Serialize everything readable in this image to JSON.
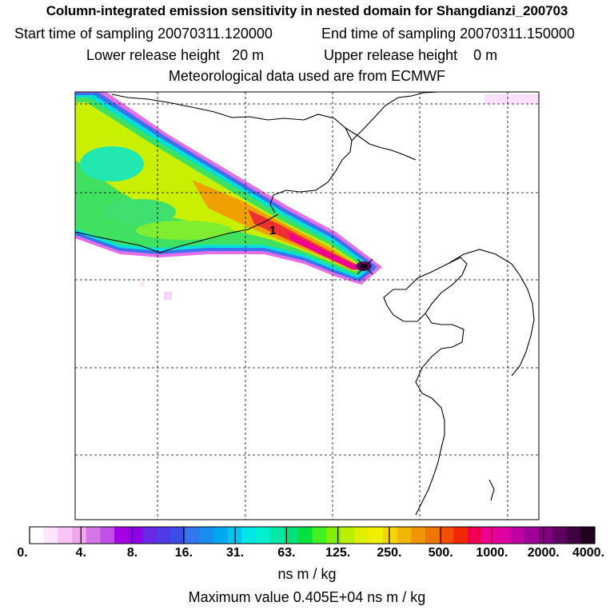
{
  "header": {
    "title": "Column-integrated emission sensitivity in nested domain for Shangdianzi_200703",
    "start_label": "Start time of sampling 20070311.120000",
    "end_label": "End time of sampling 20070311.150000",
    "lower_label": "Lower release height   20 m",
    "upper_label": "Upper release height    0 m",
    "met_label": "Meteorological data used are from ECMWF"
  },
  "map": {
    "release_marker": "1",
    "site_marker_icon": "x-cross-icon"
  },
  "colorbar": {
    "tick_labels": [
      "0.",
      "4.",
      "8.",
      "16.",
      "31.",
      "63.",
      "125.",
      "250.",
      "500.",
      "1000.",
      "2000.",
      "4000."
    ],
    "colors": [
      "#ffffff",
      "#fde6fd",
      "#f7c6f7",
      "#f0a6f0",
      "#d676e6",
      "#c050e6",
      "#a800e6",
      "#8e00e6",
      "#6a28e6",
      "#4e3ae6",
      "#3a4ee6",
      "#3476f0",
      "#1a8ef0",
      "#00a8f0",
      "#00c4f0",
      "#00e6e6",
      "#00f0d0",
      "#00e8a8",
      "#00e078",
      "#00e040",
      "#40f020",
      "#80f000",
      "#b8f000",
      "#e0f000",
      "#f0f000",
      "#f0d800",
      "#f0b800",
      "#f09600",
      "#f07400",
      "#f05000",
      "#f02800",
      "#f00050",
      "#f00090",
      "#e000a0",
      "#c000a0",
      "#a00098",
      "#800080",
      "#600060",
      "#400040",
      "#200020"
    ],
    "units": "ns m / kg",
    "max_value_label": "Maximum value  0.405E+04 ns m / kg"
  }
}
